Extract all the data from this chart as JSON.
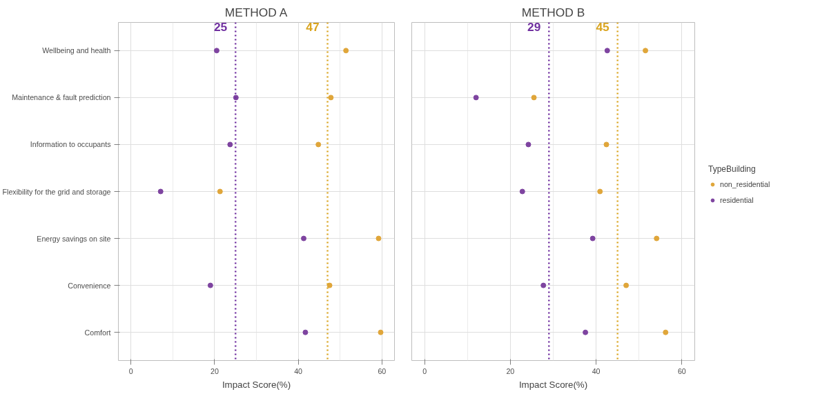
{
  "chart_data": [
    {
      "type": "scatter",
      "title": "METHOD A",
      "xlabel": "Impact Score(%)",
      "categories": [
        "Wellbeing and health",
        "Maintenance & fault prediction",
        "Information to occupants",
        "Flexibility for the grid and storage",
        "Energy savings on site",
        "Convenience",
        "Comfort"
      ],
      "series": [
        {
          "color": "#e0a63a",
          "values": [
            51.4,
            47.8,
            44.8,
            21.3,
            59.2,
            47.5,
            59.7
          ]
        },
        {
          "color": "#7e44a0",
          "values": [
            20.5,
            25.1,
            23.7,
            7.1,
            41.3,
            19.0,
            41.7
          ]
        }
      ],
      "orientation": "horizontal",
      "xlim": [
        -3,
        63
      ],
      "xticks": [
        0,
        20,
        40,
        60
      ],
      "grid": true,
      "marker": "circle",
      "ref_lines": [
        {
          "axis": "x",
          "value": 25,
          "label": "25",
          "color": "#7030a0",
          "line_style": "dotted"
        },
        {
          "axis": "x",
          "value": 47,
          "label": "47",
          "color": "#daa520",
          "line_style": "dotted"
        }
      ]
    },
    {
      "type": "scatter",
      "title": "METHOD B",
      "xlabel": "Impact Score(%)",
      "legend_title": "TypeBuilding",
      "categories": [
        null,
        null,
        null,
        null,
        null,
        null,
        null
      ],
      "series": [
        {
          "name": "non_residential",
          "color": "#e0a63a",
          "values": [
            51.5,
            25.5,
            42.4,
            40.9,
            54.1,
            47.0,
            56.2
          ]
        },
        {
          "name": "residential",
          "color": "#7e44a0",
          "values": [
            42.6,
            12.0,
            24.2,
            22.8,
            39.2,
            27.7,
            37.5
          ]
        }
      ],
      "orientation": "horizontal",
      "xlim": [
        -3,
        63
      ],
      "xticks": [
        0,
        20,
        40,
        60
      ],
      "grid": true,
      "marker": "circle",
      "legend": "right",
      "tick_labels": "x",
      "ref_lines": [
        {
          "axis": "x",
          "value": 29,
          "label": "29",
          "color": "#7030a0",
          "line_style": "dotted"
        },
        {
          "axis": "x",
          "value": 45,
          "label": "45",
          "color": "#daa520",
          "line_style": "dotted"
        }
      ]
    }
  ]
}
